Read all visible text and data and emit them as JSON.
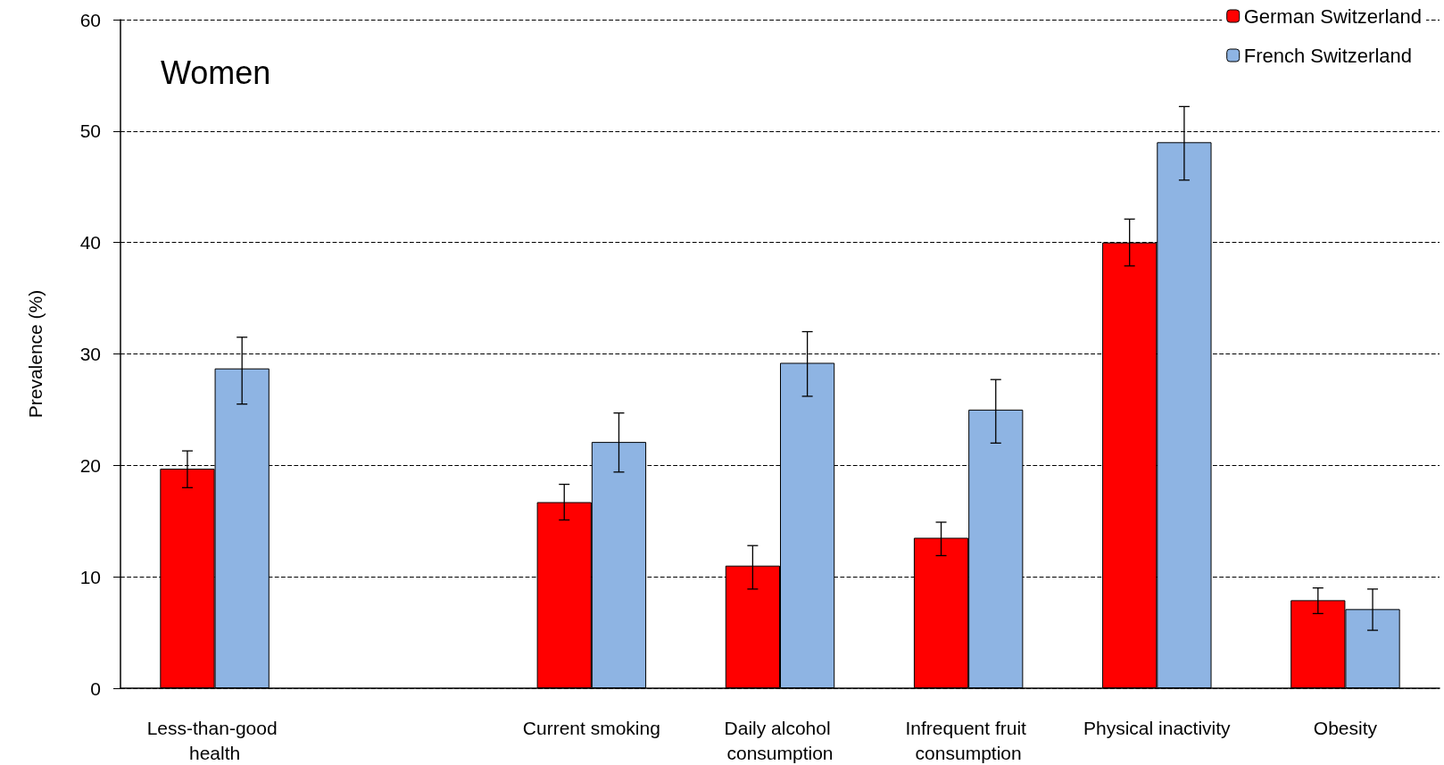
{
  "chart_data": {
    "type": "bar",
    "title": "Women",
    "ylabel": "Prevalence (%)",
    "categories": [
      "Less-than-good health",
      null,
      "Current smoking",
      "Daily alcohol consumption",
      "Infrequent fruit consumption",
      "Physical inactivity",
      "Obesity"
    ],
    "series": [
      {
        "name": "German Switzerland",
        "color": "#ff0000",
        "values": [
          19.7,
          null,
          16.7,
          11,
          13.5,
          40,
          7.9
        ],
        "errors": [
          [
            18,
            21.3
          ],
          null,
          [
            15.1,
            18.3
          ],
          [
            8.9,
            12.8
          ],
          [
            11.9,
            14.9
          ],
          [
            37.9,
            42.1
          ],
          [
            6.7,
            9
          ]
        ]
      },
      {
        "name": "French Switzerland",
        "color": "#8eb4e3",
        "values": [
          28.7,
          null,
          22.1,
          29.2,
          25,
          49,
          7.1
        ],
        "errors": [
          [
            25.5,
            31.5
          ],
          null,
          [
            19.4,
            24.7
          ],
          [
            26.2,
            32
          ],
          [
            22,
            27.7
          ],
          [
            45.6,
            52.2
          ],
          [
            5.2,
            8.9
          ]
        ]
      }
    ],
    "ylim": [
      0,
      60
    ],
    "yticks": [
      0,
      10,
      20,
      30,
      40,
      50,
      60
    ],
    "grid": "y",
    "legend": "top right"
  }
}
